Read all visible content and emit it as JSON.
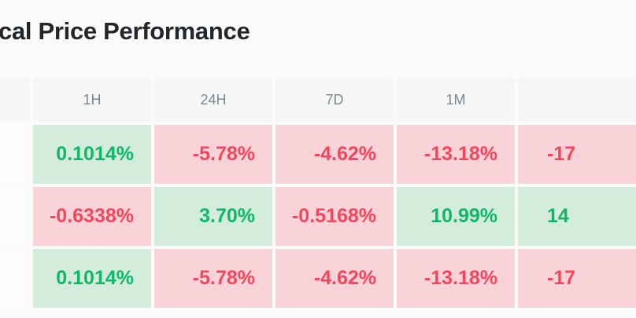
{
  "title": "cal Price Performance",
  "table": {
    "column_headers": [
      "",
      "1H",
      "24H",
      "7D",
      "1M",
      ""
    ],
    "rows": [
      {
        "label": "",
        "values": [
          {
            "text": "0.1014%",
            "trend": "up"
          },
          {
            "text": "-5.78%",
            "trend": "down"
          },
          {
            "text": "-4.62%",
            "trend": "down"
          },
          {
            "text": "-13.18%",
            "trend": "down"
          },
          {
            "text": "-17",
            "trend": "down"
          }
        ]
      },
      {
        "label": "",
        "values": [
          {
            "text": "-0.6338%",
            "trend": "down"
          },
          {
            "text": "3.70%",
            "trend": "up"
          },
          {
            "text": "-0.5168%",
            "trend": "down"
          },
          {
            "text": "10.99%",
            "trend": "up"
          },
          {
            "text": "14",
            "trend": "up"
          }
        ]
      },
      {
        "label": "",
        "values": [
          {
            "text": "0.1014%",
            "trend": "up"
          },
          {
            "text": "-5.78%",
            "trend": "down"
          },
          {
            "text": "-4.62%",
            "trend": "down"
          },
          {
            "text": "-13.18%",
            "trend": "down"
          },
          {
            "text": "-17",
            "trend": "down"
          }
        ]
      }
    ]
  },
  "colors": {
    "page-bg": "#fbfbfb",
    "header-bg": "#f6f6f6",
    "header-text": "#7d878d",
    "up-bg": "#d3ecdc",
    "up-text": "#0fb869",
    "down-bg": "#f9d3d7",
    "down-text": "#f5465d",
    "title": "#22272c",
    "label-cell-bg": "#fcfcfc"
  }
}
